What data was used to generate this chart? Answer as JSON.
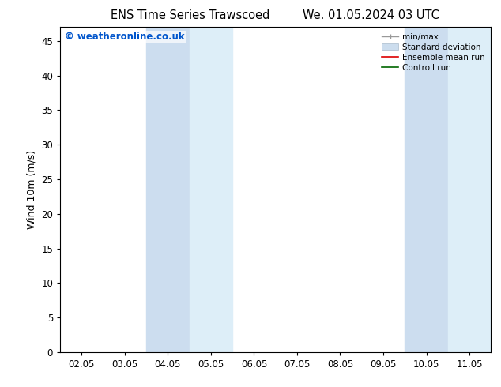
{
  "title_left": "ENS Time Series Trawscoed",
  "title_right": "We. 01.05.2024 03 UTC",
  "ylabel": "Wind 10m (m/s)",
  "ylim": [
    0,
    47
  ],
  "yticks": [
    0,
    5,
    10,
    15,
    20,
    25,
    30,
    35,
    40,
    45
  ],
  "xtick_labels": [
    "02.05",
    "03.05",
    "04.05",
    "05.05",
    "06.05",
    "07.05",
    "08.05",
    "09.05",
    "10.05",
    "11.05"
  ],
  "n_xticks": 10,
  "background_color": "#ffffff",
  "shaded_regions": [
    {
      "xmin": 2,
      "xmax": 3,
      "color": "#ccddef",
      "alpha": 1.0
    },
    {
      "xmin": 3,
      "xmax": 4,
      "color": "#ddeef8",
      "alpha": 1.0
    },
    {
      "xmin": 8,
      "xmax": 9,
      "color": "#ccddef",
      "alpha": 1.0
    },
    {
      "xmin": 9,
      "xmax": 10,
      "color": "#ddeef8",
      "alpha": 1.0
    }
  ],
  "legend_items": [
    {
      "label": "min/max",
      "color": "#999999",
      "lw": 1.0,
      "style": "minmax"
    },
    {
      "label": "Standard deviation",
      "color": "#ccddee",
      "lw": 8,
      "style": "band"
    },
    {
      "label": "Ensemble mean run",
      "color": "#dd0000",
      "lw": 1.2,
      "style": "line"
    },
    {
      "label": "Controll run",
      "color": "#006600",
      "lw": 1.2,
      "style": "line"
    }
  ],
  "watermark": "© weatheronline.co.uk",
  "watermark_color": "#0055cc",
  "watermark_fontsize": 8.5,
  "title_fontsize": 10.5,
  "axis_fontsize": 8.5,
  "ylabel_fontsize": 9,
  "legend_fontsize": 7.5
}
